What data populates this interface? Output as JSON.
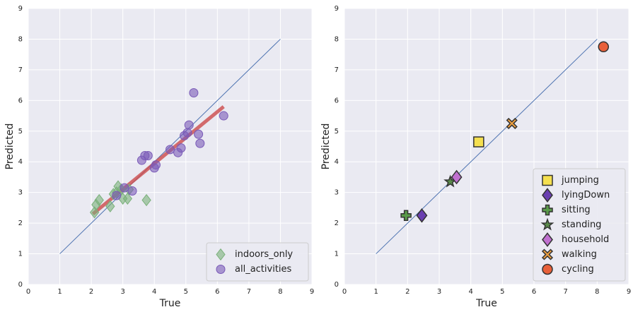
{
  "chart_data": [
    {
      "type": "scatter",
      "xlabel": "True",
      "ylabel": "Predicted",
      "xlim": [
        0,
        9
      ],
      "ylim": [
        0,
        9
      ],
      "xticks": [
        0,
        1,
        2,
        3,
        4,
        5,
        6,
        7,
        8,
        9
      ],
      "yticks": [
        0,
        1,
        2,
        3,
        4,
        5,
        6,
        7,
        8,
        9
      ],
      "grid": true,
      "legend": "lower right",
      "lines": [
        {
          "x": [
            1,
            8
          ],
          "values": [
            1,
            8
          ],
          "color": "#4c72b0",
          "width": 1
        },
        {
          "x": [
            2.05,
            6.2
          ],
          "values": [
            2.3,
            5.8
          ],
          "color": "#cc4a4a",
          "width": 5
        }
      ],
      "series": [
        {
          "name": "indoors_only",
          "color": "#7ab07a",
          "marker": "diamond",
          "x": [
            2.1,
            2.15,
            2.25,
            2.6,
            2.7,
            2.8,
            2.85,
            2.95,
            3.0,
            3.15,
            3.2,
            3.75
          ],
          "values": [
            2.35,
            2.6,
            2.75,
            2.55,
            2.95,
            3.0,
            3.2,
            3.1,
            2.8,
            2.8,
            3.1,
            2.75
          ]
        },
        {
          "name": "all_activities",
          "color": "#7a5ab8",
          "marker": "circle",
          "x": [
            2.8,
            3.05,
            3.3,
            3.6,
            3.7,
            3.8,
            4.0,
            4.05,
            4.5,
            4.75,
            4.85,
            4.95,
            5.05,
            5.1,
            5.25,
            5.4,
            5.45,
            6.2
          ],
          "values": [
            2.9,
            3.15,
            3.05,
            4.05,
            4.2,
            4.2,
            3.8,
            3.9,
            4.4,
            4.3,
            4.45,
            4.85,
            4.95,
            5.2,
            6.25,
            4.9,
            4.6,
            5.5
          ]
        }
      ]
    },
    {
      "type": "scatter",
      "xlabel": "True",
      "ylabel": "Predicted",
      "xlim": [
        0,
        9
      ],
      "ylim": [
        0,
        9
      ],
      "xticks": [
        0,
        1,
        2,
        3,
        4,
        5,
        6,
        7,
        8,
        9
      ],
      "yticks": [
        0,
        1,
        2,
        3,
        4,
        5,
        6,
        7,
        8,
        9
      ],
      "grid": true,
      "legend": "lower right",
      "lines": [
        {
          "x": [
            1,
            8
          ],
          "values": [
            1,
            8
          ],
          "color": "#4c72b0",
          "width": 1
        }
      ],
      "series": [
        {
          "name": "jumping",
          "color": "#f5e050",
          "marker": "square",
          "x": [
            4.25
          ],
          "values": [
            4.65
          ]
        },
        {
          "name": "lyingDown",
          "color": "#6a3fb0",
          "marker": "diamond",
          "x": [
            2.45
          ],
          "values": [
            2.25
          ]
        },
        {
          "name": "sitting",
          "color": "#5a9a4a",
          "marker": "plus",
          "x": [
            1.95
          ],
          "values": [
            2.25
          ]
        },
        {
          "name": "standing",
          "color": "#5a8a4a",
          "marker": "star",
          "x": [
            3.35
          ],
          "values": [
            3.35
          ]
        },
        {
          "name": "household",
          "color": "#c070d0",
          "marker": "diamond",
          "x": [
            3.55
          ],
          "values": [
            3.5
          ]
        },
        {
          "name": "walking",
          "color": "#f0a040",
          "marker": "x",
          "x": [
            5.3
          ],
          "values": [
            5.25
          ]
        },
        {
          "name": "cycling",
          "color": "#e8603a",
          "marker": "circle",
          "x": [
            8.2
          ],
          "values": [
            7.75
          ]
        }
      ]
    }
  ]
}
